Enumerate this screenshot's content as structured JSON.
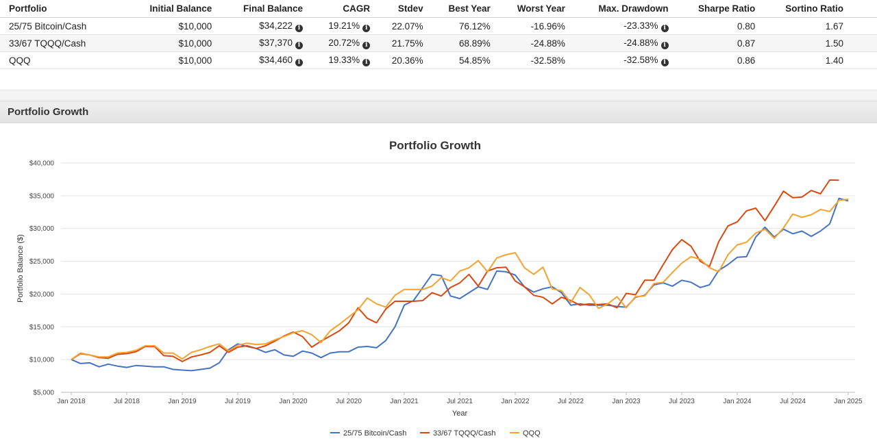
{
  "table": {
    "headers": [
      "Portfolio",
      "Initial Balance",
      "Final Balance",
      "CAGR",
      "Stdev",
      "Best Year",
      "Worst Year",
      "Max. Drawdown",
      "Sharpe Ratio",
      "Sortino Ratio"
    ],
    "rows": [
      [
        "25/75 Bitcoin/Cash",
        "$10,000",
        "$34,222",
        "19.21%",
        "22.07%",
        "76.12%",
        "-16.96%",
        "-23.33%",
        "0.80",
        "1.67"
      ],
      [
        "33/67 TQQQ/Cash",
        "$10,000",
        "$37,370",
        "20.72%",
        "21.75%",
        "68.89%",
        "-24.88%",
        "-24.88%",
        "0.87",
        "1.50"
      ],
      [
        "QQQ",
        "$10,000",
        "$34,460",
        "19.33%",
        "20.36%",
        "54.85%",
        "-32.58%",
        "-32.58%",
        "0.86",
        "1.40"
      ]
    ],
    "info_icon": "info-circle-icon",
    "info_glyph": "i"
  },
  "section": {
    "title": "Portfolio Growth"
  },
  "chart_data": {
    "type": "line",
    "title": "Portfolio Growth",
    "xlabel": "Year",
    "ylabel": "Portfolio Balance ($)",
    "ylim": [
      5000,
      40000
    ],
    "yticks": [
      5000,
      10000,
      15000,
      20000,
      25000,
      30000,
      35000,
      40000
    ],
    "ytick_labels": [
      "$5,000",
      "$10,000",
      "$15,000",
      "$20,000",
      "$25,000",
      "$30,000",
      "$35,000",
      "$40,000"
    ],
    "xtick_labels": [
      "Jan 2018",
      "Jul 2018",
      "Jan 2019",
      "Jul 2019",
      "Jan 2020",
      "Jul 2020",
      "Jan 2021",
      "Jul 2021",
      "Jan 2022",
      "Jul 2022",
      "Jan 2023",
      "Jul 2023",
      "Jan 2024",
      "Jul 2024",
      "Jan 2025"
    ],
    "xtick_months": [
      0,
      6,
      12,
      18,
      24,
      30,
      36,
      42,
      48,
      54,
      60,
      66,
      72,
      78,
      84
    ],
    "series": [
      {
        "name": "25/75 Bitcoin/Cash",
        "color": "#4472c4",
        "values": [
          10000,
          9400,
          9500,
          8900,
          9300,
          9000,
          8800,
          9100,
          9000,
          8900,
          8900,
          8500,
          8400,
          8300,
          8500,
          8700,
          9500,
          11500,
          12400,
          12000,
          11700,
          11100,
          11500,
          10700,
          10500,
          11300,
          11000,
          10300,
          11000,
          11200,
          11200,
          11900,
          12000,
          11800,
          12900,
          15000,
          18300,
          19000,
          21000,
          23000,
          22800,
          19700,
          19300,
          20200,
          21100,
          20700,
          23500,
          23400,
          22900,
          21100,
          20300,
          20800,
          21100,
          20200,
          18300,
          18500,
          18300,
          18300,
          18300,
          18100,
          18000,
          19500,
          19800,
          21400,
          21700,
          21200,
          22100,
          21800,
          21000,
          21400,
          23600,
          24500,
          25600,
          25700,
          28700,
          30200,
          28700,
          29900,
          29200,
          29600,
          28800,
          29600,
          30700,
          34600,
          34200
        ]
      },
      {
        "name": "33/67 TQQQ/Cash",
        "color": "#d9480f",
        "values": [
          10000,
          10900,
          10700,
          10300,
          10200,
          10800,
          10900,
          11200,
          12000,
          12000,
          10600,
          10500,
          9700,
          10400,
          10700,
          11100,
          12100,
          11100,
          11900,
          12100,
          11700,
          12100,
          12800,
          13600,
          14200,
          13500,
          11900,
          12800,
          13600,
          14400,
          15600,
          17900,
          16300,
          15600,
          17700,
          18900,
          18900,
          18900,
          19000,
          20200,
          19700,
          21000,
          21700,
          23000,
          21200,
          23500,
          24000,
          24100,
          22000,
          21100,
          19800,
          19500,
          18500,
          19500,
          19000,
          18300,
          18500,
          18400,
          18500,
          17900,
          20100,
          19900,
          22100,
          22100,
          24500,
          26800,
          28300,
          27300,
          25000,
          24200,
          28000,
          30400,
          31000,
          32700,
          33100,
          31200,
          33400,
          35700,
          34700,
          34800,
          35800,
          35300,
          37400,
          37370
        ]
      },
      {
        "name": "QQQ",
        "color": "#f5a22f",
        "values": [
          10000,
          11000,
          10700,
          10400,
          10400,
          11000,
          11100,
          11400,
          12100,
          12100,
          11000,
          11000,
          10100,
          11100,
          11500,
          12000,
          12400,
          11300,
          12200,
          12500,
          12300,
          12400,
          13000,
          13500,
          14100,
          14400,
          13800,
          12600,
          14400,
          15400,
          16500,
          17600,
          19400,
          18500,
          18000,
          19800,
          20700,
          20700,
          20700,
          21200,
          22500,
          22000,
          23500,
          24000,
          25100,
          23400,
          25500,
          26000,
          26300,
          24000,
          23000,
          24100,
          20800,
          20500,
          18700,
          21000,
          19900,
          17800,
          18500,
          19600,
          17900,
          19600,
          19700,
          21600,
          21800,
          23300,
          24700,
          25700,
          25300,
          24000,
          23400,
          26000,
          27500,
          27900,
          29300,
          29900,
          28500,
          30100,
          32200,
          31700,
          32100,
          32900,
          32600,
          34300,
          34460
        ]
      }
    ]
  }
}
